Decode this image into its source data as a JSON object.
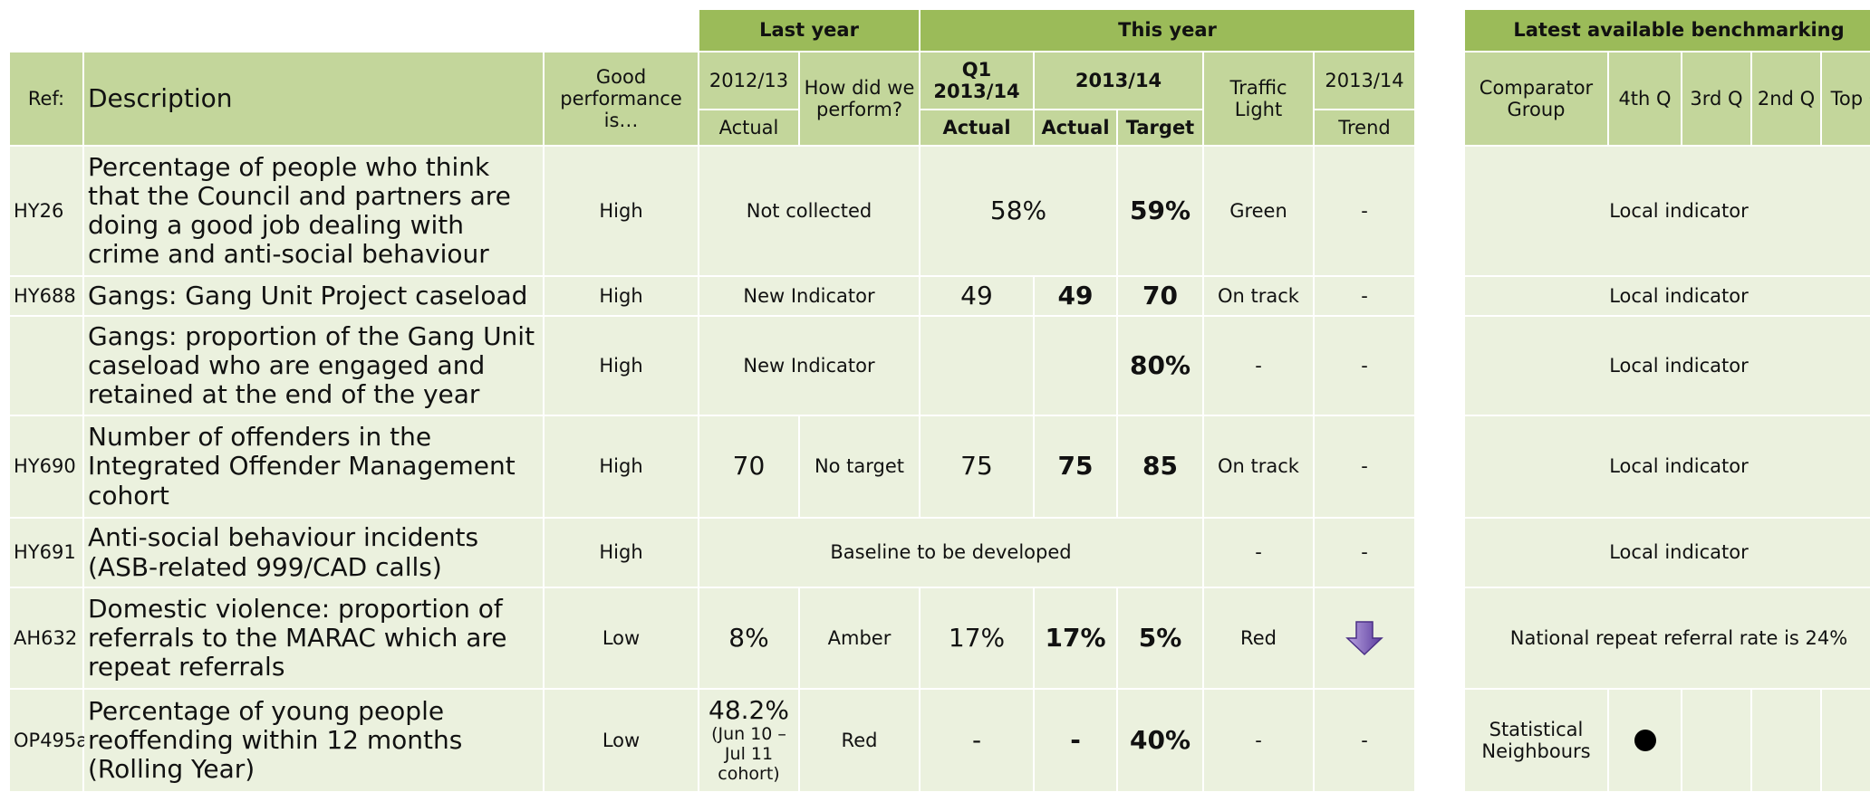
{
  "header": {
    "last_year": "Last year",
    "this_year": "This year",
    "benchmarking": "Latest available benchmarking",
    "ref": "Ref:",
    "description": "Description",
    "good_performance": "Good performance is…",
    "last_period": "2012/13",
    "last_actual": "Actual",
    "how_did": "How did we perform?",
    "q1": "Q1 2013/14",
    "q1_actual": "Actual",
    "this_period": "2013/14",
    "actual": "Actual",
    "target": "Target",
    "traffic_light": "Traffic Light",
    "trend_period": "2013/14",
    "trend": "Trend",
    "comparator_group": "Comparator Group",
    "q4": "4th Q",
    "q3": "3rd Q",
    "q2": "2nd Q",
    "top_q": "Top Q"
  },
  "rows": [
    {
      "ref": "HY26",
      "description": "Percentage of people who think that the Council and partners are doing a good job dealing with crime and anti-social behaviour",
      "good": "High",
      "last": "Not collected",
      "q1": "58%",
      "target": "59%",
      "traffic": "Green",
      "trend": "-",
      "bench": "Local indicator"
    },
    {
      "ref": "HY688",
      "description": "Gangs: Gang Unit Project caseload",
      "good": "High",
      "last": "New Indicator",
      "q1": "49",
      "actual": "49",
      "target": "70",
      "traffic": "On track",
      "trend": "-",
      "bench": "Local indicator"
    },
    {
      "description": "Gangs: proportion of the Gang Unit caseload who are engaged and retained at the end of the year",
      "good": "High",
      "last": "New Indicator",
      "target": "80%",
      "traffic": "-",
      "trend": "-",
      "bench": "Local indicator"
    },
    {
      "ref": "HY690",
      "description": "Number of offenders in the Integrated Offender Management cohort",
      "good": "High",
      "last_actual": "70",
      "last_perform": "No target",
      "q1": "75",
      "actual": "75",
      "target": "85",
      "traffic": "On track",
      "trend": "-",
      "bench": "Local indicator"
    },
    {
      "ref": "HY691",
      "description": "Anti-social behaviour incidents (ASB-related 999/CAD calls)",
      "good": "High",
      "last": "Baseline to be developed",
      "traffic": "-",
      "trend": "-",
      "bench": "Local indicator"
    },
    {
      "ref": "AH632",
      "description": "Domestic violence: proportion of referrals to the MARAC which are repeat referrals",
      "good": "Low",
      "last_actual": "8%",
      "last_perform": "Amber",
      "q1": "17%",
      "actual": "17%",
      "target": "5%",
      "traffic": "Red",
      "bench": "National repeat referral rate is 24%"
    },
    {
      "ref": "OP495a",
      "description": "Percentage of young people reoffending within 12 months (Rolling Year)",
      "good": "Low",
      "last_actual": "48.2%",
      "last_actual_note": "(Jun 10 – Jul 11 cohort)",
      "last_perform": "Red",
      "q1": "-",
      "actual": "-",
      "target": "40%",
      "traffic": "-",
      "trend": "-",
      "comparator": "Statistical Neighbours"
    }
  ]
}
